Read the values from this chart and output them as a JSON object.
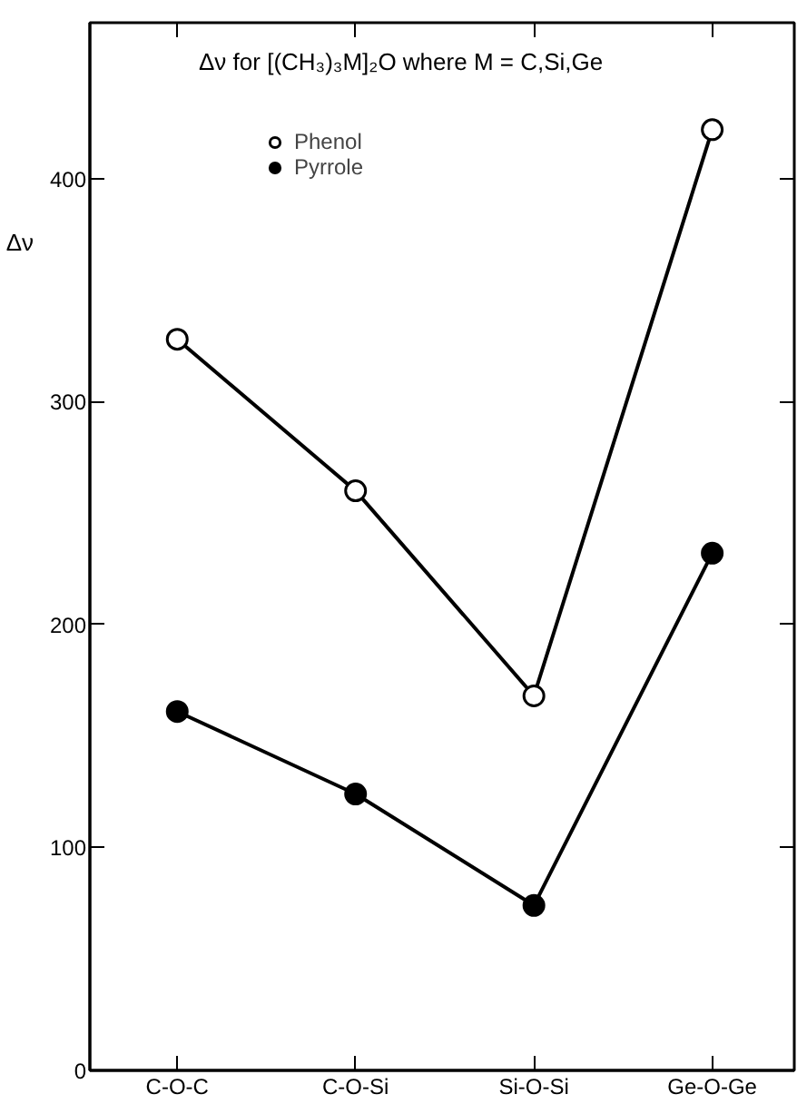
{
  "chart_data": {
    "type": "line",
    "title": "Δν  for [(CH₃)₃M]₂O where M = C,Si,Ge",
    "ylabel": "Δν",
    "categories": [
      "C-O-C",
      "C-O-Si",
      "Si-O-Si",
      "Ge-O-Ge"
    ],
    "series": [
      {
        "name": "Phenol",
        "color": "#000000",
        "values": [
          328,
          260,
          168,
          422
        ]
      },
      {
        "name": "Pyrrole",
        "color": "#000000",
        "values": [
          161,
          124,
          74,
          232
        ]
      }
    ],
    "ylim": [
      0,
      470
    ],
    "yticks": [
      0,
      100,
      200,
      300,
      400
    ],
    "marker": "circle",
    "line_style": "solid",
    "grid": false,
    "legend": "top left"
  }
}
